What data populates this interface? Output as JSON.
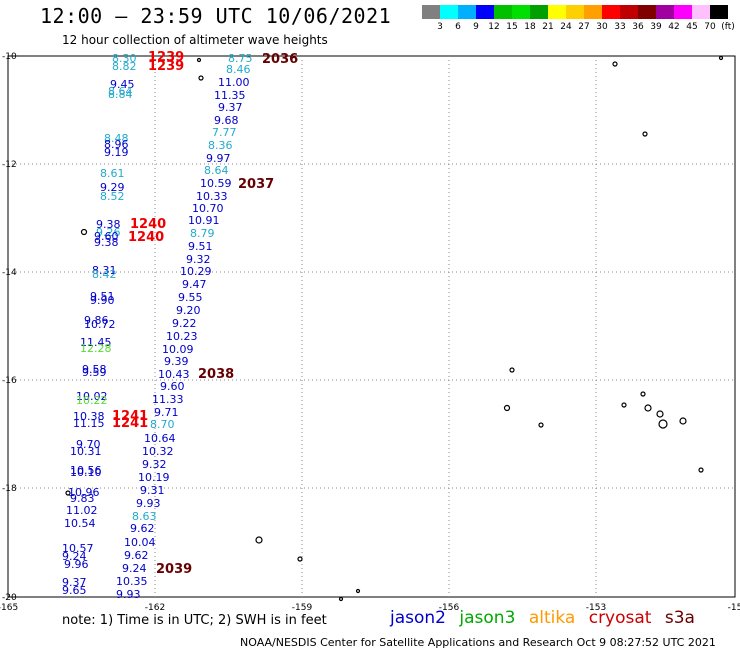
{
  "header": {
    "title": "12:00 – 23:59 UTC 10/06/2021",
    "subtitle": "12 hour collection of altimeter wave heights"
  },
  "colorbar": {
    "colors": [
      "#808080",
      "#00ffff",
      "#00b0ff",
      "#0000ff",
      "#00c000",
      "#00e000",
      "#00a000",
      "#ffff00",
      "#ffd000",
      "#ffa000",
      "#ff0000",
      "#c00000",
      "#800000",
      "#a000a0",
      "#ff00ff",
      "#ffc0ff",
      "#000000"
    ],
    "labels": [
      "3",
      "6",
      "9",
      "12",
      "15",
      "18",
      "21",
      "24",
      "27",
      "30",
      "33",
      "36",
      "39",
      "42",
      "45",
      "70",
      "(ft)"
    ]
  },
  "axes": {
    "x_ticks": [
      "-165",
      "-162",
      "-159",
      "-156",
      "-153",
      "-15"
    ],
    "y_ticks": [
      "-10",
      "-12",
      "-14",
      "-16",
      "-18",
      "-20"
    ]
  },
  "pass_colors": {
    "jason2": "#0000cc",
    "jason3": "#00aa00",
    "altika": "#ff9900",
    "cryosat": "#cc0000",
    "s3a": "#660000",
    "light": "#22aacc",
    "green_light": "#55dd33"
  },
  "passes": [
    {
      "label": "1239",
      "color": "#ee0000"
    },
    {
      "label": "1239",
      "color": "#ee0000"
    },
    {
      "label": "2036",
      "color": "#660000"
    },
    {
      "label": "2037",
      "color": "#660000"
    },
    {
      "label": "1240",
      "color": "#ee0000"
    },
    {
      "label": "1240",
      "color": "#ee0000"
    },
    {
      "label": "2038",
      "color": "#660000"
    },
    {
      "label": "1241",
      "color": "#ee0000"
    },
    {
      "label": "1241",
      "color": "#ee0000"
    },
    {
      "label": "2039",
      "color": "#660000"
    }
  ],
  "obs_left": [
    {
      "v": "8.30",
      "c": "light"
    },
    {
      "v": "8.82",
      "c": "light"
    },
    {
      "v": "9.45",
      "c": "dark"
    },
    {
      "v": "8.64",
      "c": "light"
    },
    {
      "v": "8.84",
      "c": "light"
    },
    {
      "v": "8.48",
      "c": "light"
    },
    {
      "v": "8.96",
      "c": "dark"
    },
    {
      "v": "9.19",
      "c": "dark"
    },
    {
      "v": "8.61",
      "c": "light"
    },
    {
      "v": "9.29",
      "c": "dark"
    },
    {
      "v": "8.52",
      "c": "light"
    },
    {
      "v": "9.38",
      "c": "dark"
    },
    {
      "v": "9.26",
      "c": "light"
    },
    {
      "v": "9.60",
      "c": "dark"
    },
    {
      "v": "9.38",
      "c": "dark"
    },
    {
      "v": "8.31",
      "c": "dark"
    },
    {
      "v": "8.42",
      "c": "light"
    },
    {
      "v": "9.51",
      "c": "dark"
    },
    {
      "v": "9.90",
      "c": "dark"
    },
    {
      "v": "9.86",
      "c": "dark"
    },
    {
      "v": "10.72",
      "c": "dark"
    },
    {
      "v": "11.45",
      "c": "dark"
    },
    {
      "v": "12.28",
      "c": "green_light"
    },
    {
      "v": "9.58",
      "c": "dark"
    },
    {
      "v": "9.59",
      "c": "dark"
    },
    {
      "v": "10.02",
      "c": "dark"
    },
    {
      "v": "10.22",
      "c": "green_light"
    },
    {
      "v": "10.38",
      "c": "dark"
    },
    {
      "v": "11.15",
      "c": "dark"
    },
    {
      "v": "9.70",
      "c": "dark"
    },
    {
      "v": "10.31",
      "c": "dark"
    },
    {
      "v": "10.56",
      "c": "dark"
    },
    {
      "v": "10.10",
      "c": "dark"
    },
    {
      "v": "10.96",
      "c": "dark"
    },
    {
      "v": "9.83",
      "c": "dark"
    },
    {
      "v": "11.02",
      "c": "dark"
    },
    {
      "v": "10.54",
      "c": "dark"
    },
    {
      "v": "10.57",
      "c": "dark"
    },
    {
      "v": "9.24",
      "c": "dark"
    },
    {
      "v": "9.96",
      "c": "dark"
    },
    {
      "v": "9.37",
      "c": "dark"
    },
    {
      "v": "9.65",
      "c": "dark"
    }
  ],
  "obs_right": [
    {
      "v": "8.75",
      "c": "light"
    },
    {
      "v": "8.46",
      "c": "light"
    },
    {
      "v": "11.00",
      "c": "dark"
    },
    {
      "v": "11.35",
      "c": "dark"
    },
    {
      "v": "9.37",
      "c": "dark"
    },
    {
      "v": "9.68",
      "c": "dark"
    },
    {
      "v": "7.77",
      "c": "light"
    },
    {
      "v": "8.36",
      "c": "light"
    },
    {
      "v": "9.97",
      "c": "dark"
    },
    {
      "v": "8.64",
      "c": "light"
    },
    {
      "v": "10.59",
      "c": "dark"
    },
    {
      "v": "10.33",
      "c": "dark"
    },
    {
      "v": "10.70",
      "c": "dark"
    },
    {
      "v": "10.91",
      "c": "dark"
    },
    {
      "v": "8.79",
      "c": "light"
    },
    {
      "v": "9.51",
      "c": "dark"
    },
    {
      "v": "9.32",
      "c": "dark"
    },
    {
      "v": "10.29",
      "c": "dark"
    },
    {
      "v": "9.47",
      "c": "dark"
    },
    {
      "v": "9.55",
      "c": "dark"
    },
    {
      "v": "9.20",
      "c": "dark"
    },
    {
      "v": "9.22",
      "c": "dark"
    },
    {
      "v": "10.23",
      "c": "dark"
    },
    {
      "v": "10.09",
      "c": "dark"
    },
    {
      "v": "9.39",
      "c": "dark"
    },
    {
      "v": "10.43",
      "c": "dark"
    },
    {
      "v": "9.60",
      "c": "dark"
    },
    {
      "v": "11.33",
      "c": "dark"
    },
    {
      "v": "9.71",
      "c": "dark"
    },
    {
      "v": "8.70",
      "c": "light"
    },
    {
      "v": "10.64",
      "c": "dark"
    },
    {
      "v": "10.32",
      "c": "dark"
    },
    {
      "v": "9.32",
      "c": "dark"
    },
    {
      "v": "10.19",
      "c": "dark"
    },
    {
      "v": "9.31",
      "c": "dark"
    },
    {
      "v": "9.93",
      "c": "dark"
    },
    {
      "v": "8.63",
      "c": "light"
    },
    {
      "v": "9.62",
      "c": "dark"
    },
    {
      "v": "10.04",
      "c": "dark"
    },
    {
      "v": "9.62",
      "c": "dark"
    },
    {
      "v": "9.24",
      "c": "dark"
    },
    {
      "v": "10.35",
      "c": "dark"
    },
    {
      "v": "9.93",
      "c": "dark"
    }
  ],
  "note": "note:  1) Time is in UTC; 2) SWH is in feet",
  "legend": {
    "jason2": "jason2",
    "jason3": "jason3",
    "altika": "altika",
    "cryosat": "cryosat",
    "s3a": "s3a"
  },
  "footer": "NOAA/NESDIS Center for Satellite Applications and Research     Oct  9 08:27:52 UTC 2021"
}
